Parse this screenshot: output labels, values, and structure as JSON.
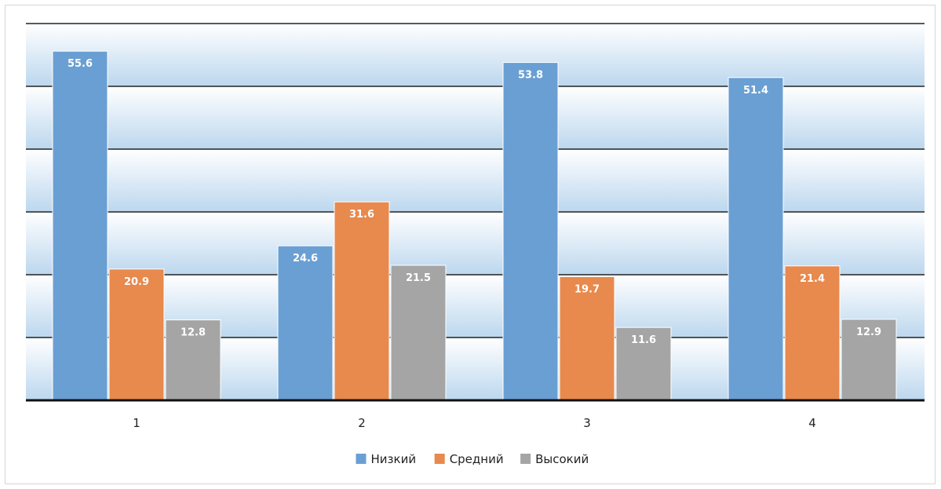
{
  "chart_data": {
    "type": "bar",
    "categories": [
      "1",
      "2",
      "3",
      "4"
    ],
    "series": [
      {
        "name": "Низкий",
        "values": [
          55.6,
          24.6,
          53.8,
          51.4
        ],
        "labels": [
          "55.6",
          "24.6",
          "53.8",
          "51.4"
        ],
        "color": "#6a9fd4"
      },
      {
        "name": "Средний",
        "values": [
          20.9,
          31.6,
          19.7,
          21.4
        ],
        "labels": [
          "20.9",
          "31.6",
          "19.7",
          "21.4"
        ],
        "color": "#e8894d"
      },
      {
        "name": "Высокий",
        "values": [
          12.8,
          21.5,
          11.6,
          12.9
        ],
        "labels": [
          "12.8",
          "21.5",
          "11.6",
          "12.9"
        ],
        "color": "#a5a5a5"
      }
    ],
    "ylim": [
      0,
      60
    ],
    "gridlines": [
      0,
      10,
      20,
      30,
      40,
      50,
      60
    ],
    "grid": true,
    "legend": "bottom",
    "title": "",
    "xlabel": "",
    "ylabel": ""
  }
}
